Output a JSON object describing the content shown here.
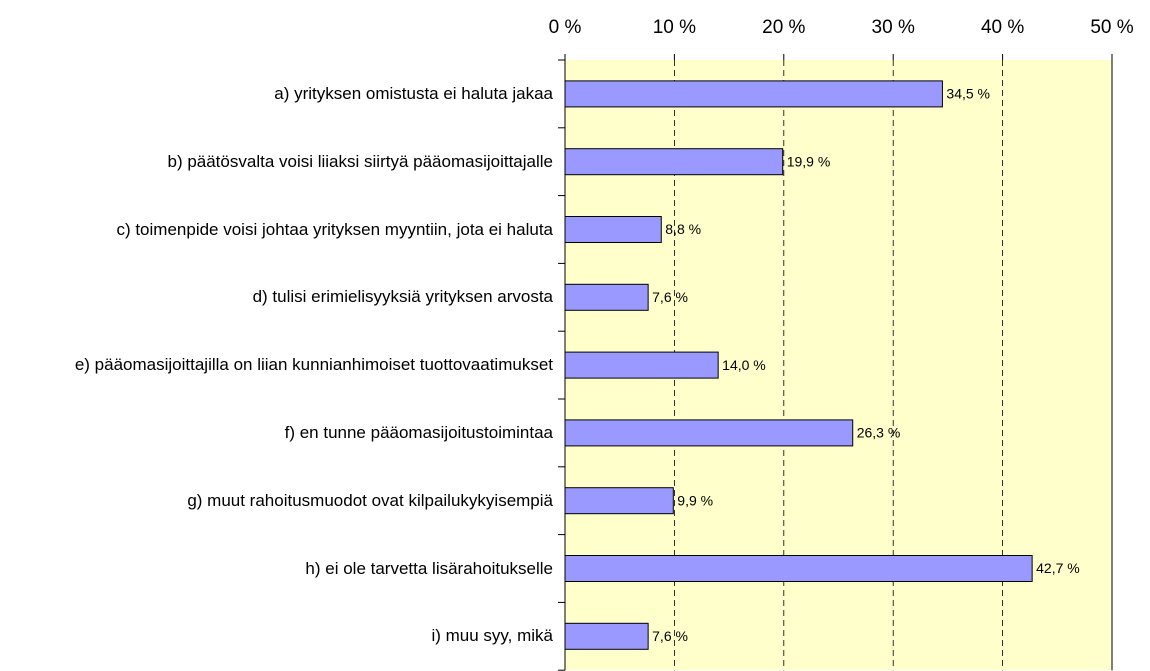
{
  "chart_data": {
    "type": "bar",
    "orientation": "horizontal",
    "categories": [
      "a) yrityksen omistusta ei haluta jakaa",
      "b) päätösvalta voisi liiaksi siirtyä pääomasijoittajalle",
      "c) toimenpide voisi johtaa yrityksen myyntiin, jota ei haluta",
      "d) tulisi erimielisyyksiä yrityksen arvosta",
      "e) pääomasijoittajilla on liian kunnianhimoiset tuottovaatimukset",
      "f) en tunne pääomasijoitustoimintaa",
      "g) muut rahoitusmuodot ovat kilpailukykyisempiä",
      "h) ei ole tarvetta lisärahoitukselle",
      "i) muu syy, mikä"
    ],
    "values": [
      34.5,
      19.9,
      8.8,
      7.6,
      14.0,
      26.3,
      9.9,
      42.7,
      7.6
    ],
    "value_labels": [
      "34,5 %",
      "19,9 %",
      "8,8 %",
      "7,6 %",
      "14,0 %",
      "26,3 %",
      "9,9 %",
      "42,7 %",
      "7,6 %"
    ],
    "color": "#9999ff",
    "xlim": [
      0,
      50
    ],
    "xticks": [
      {
        "value": 0,
        "label": "0 %"
      },
      {
        "value": 10,
        "label": "10 %"
      },
      {
        "value": 20,
        "label": "20 %"
      },
      {
        "value": 30,
        "label": "30 %"
      },
      {
        "value": 40,
        "label": "40 %"
      },
      {
        "value": 50,
        "label": "50 %"
      }
    ],
    "grid": true
  }
}
